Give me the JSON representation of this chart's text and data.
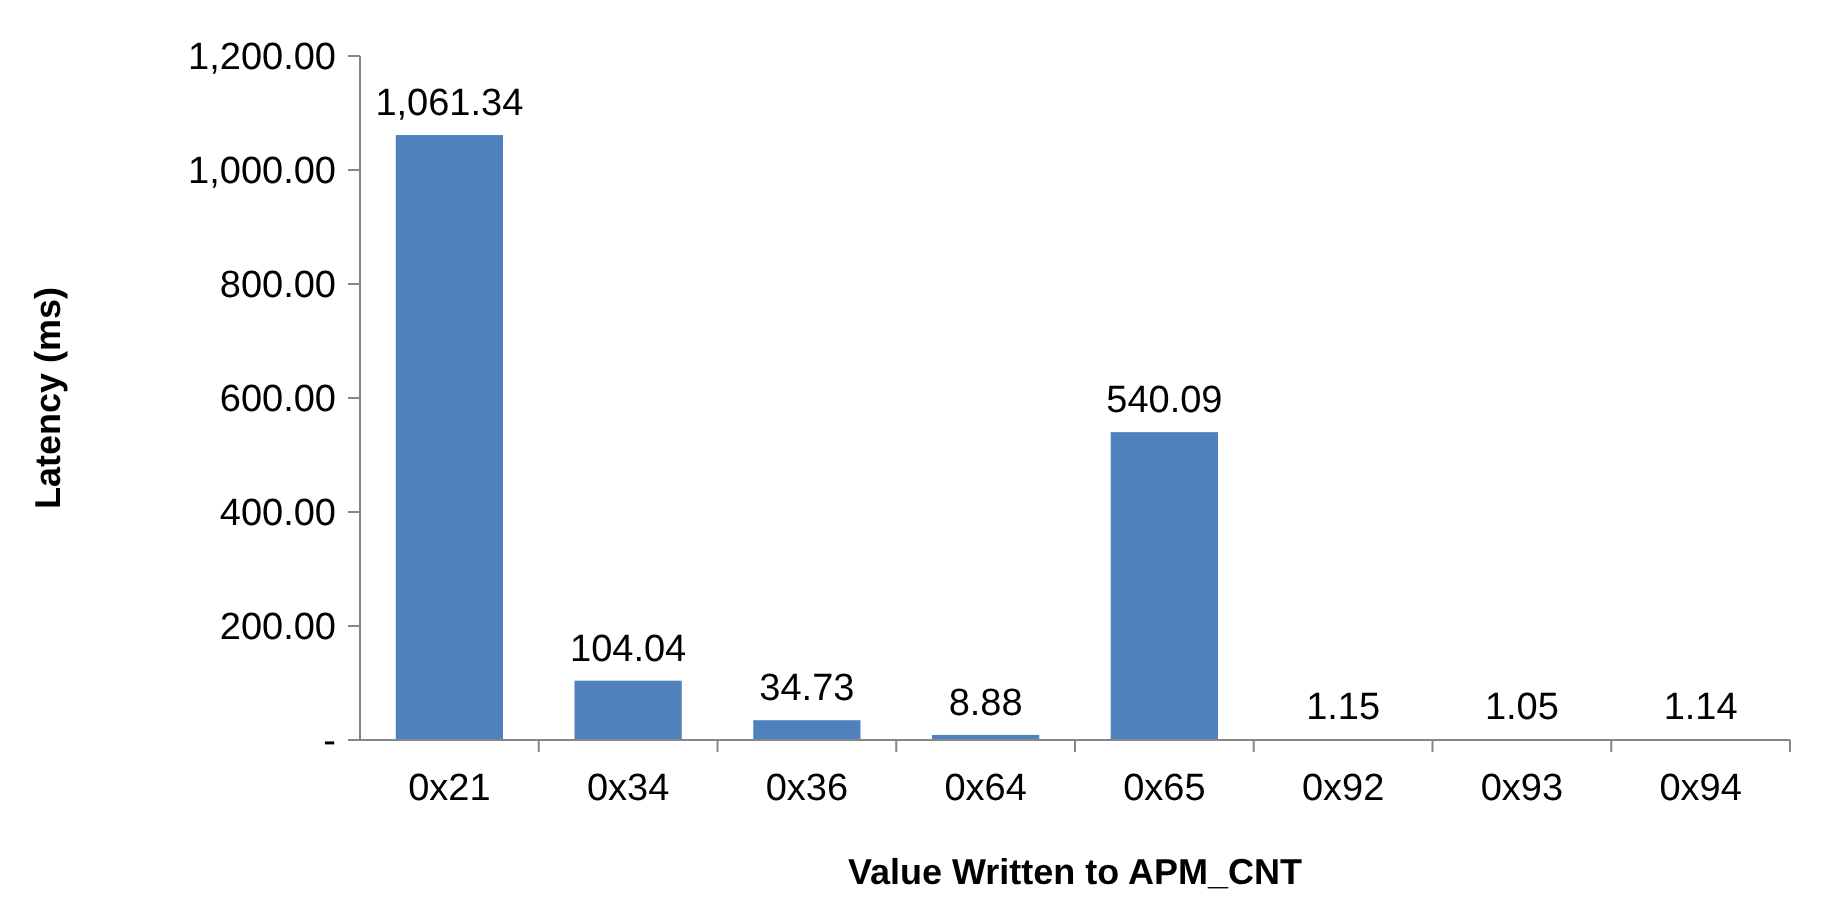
{
  "chart_data": {
    "type": "bar",
    "xlabel": "Value Written to APM_CNT",
    "ylabel": "Latency (ms)",
    "categories": [
      "0x21",
      "0x34",
      "0x36",
      "0x64",
      "0x65",
      "0x92",
      "0x93",
      "0x94"
    ],
    "values": [
      1061.34,
      104.04,
      34.73,
      8.88,
      540.09,
      1.15,
      1.05,
      1.14
    ],
    "value_labels": [
      "1,061.34",
      "104.04",
      "34.73",
      "8.88",
      "540.09",
      "1.15",
      "1.05",
      "1.14"
    ],
    "color": "#4f81bd",
    "ylim": [
      0,
      1200
    ],
    "yticks": [
      {
        "value": 0,
        "label": "-"
      },
      {
        "value": 200,
        "label": "200.00"
      },
      {
        "value": 400,
        "label": "400.00"
      },
      {
        "value": 600,
        "label": "600.00"
      },
      {
        "value": 800,
        "label": "800.00"
      },
      {
        "value": 1000,
        "label": "1,000.00"
      },
      {
        "value": 1200,
        "label": "1,200.00"
      }
    ],
    "grid": false
  }
}
